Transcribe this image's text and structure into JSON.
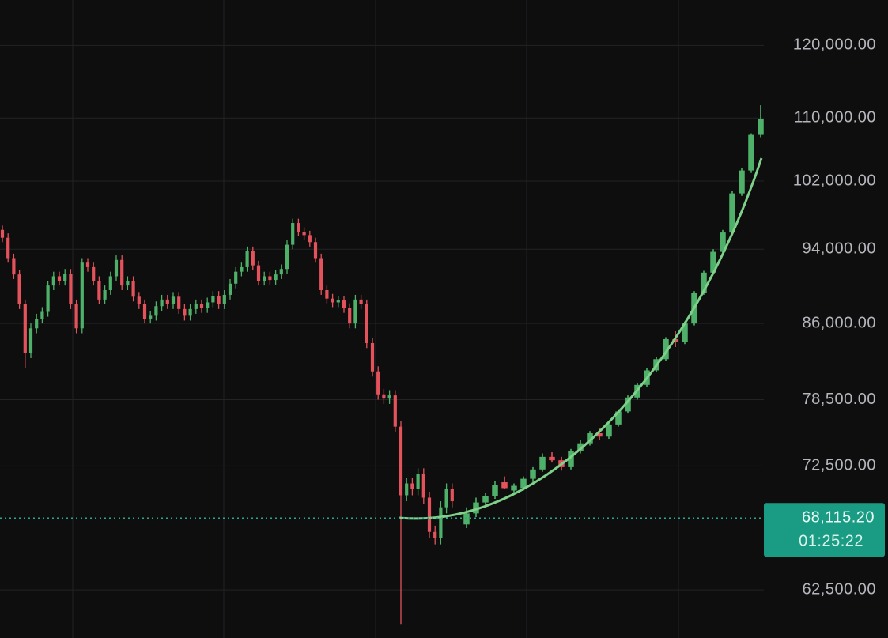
{
  "chart_data": {
    "type": "candlestick",
    "log_scale": true,
    "grid": true,
    "up_color": "#4fb06a",
    "down_color": "#e4535c",
    "ylim": [
      59000,
      126700
    ],
    "yticks": [
      {
        "value": 120000,
        "label": "120,000.00"
      },
      {
        "value": 110000,
        "label": "110,000.00"
      },
      {
        "value": 102000,
        "label": "102,000.00"
      },
      {
        "value": 94000,
        "label": "94,000.00"
      },
      {
        "value": 86000,
        "label": "86,000.00"
      },
      {
        "value": 78500,
        "label": "78,500.00"
      },
      {
        "value": 72500,
        "label": "72,500.00"
      },
      {
        "value": 62500,
        "label": "62,500.00"
      }
    ],
    "last_price": {
      "value": 68115.2,
      "label": "68,115.20"
    },
    "countdown": "01:25:22",
    "series": [
      {
        "open": [
          96200,
          95300,
          93000,
          91200,
          88000,
          83000,
          85500,
          86500,
          87200,
          90000,
          91000,
          90500,
          91300,
          88000,
          85500,
          92500,
          92000,
          90500,
          88500,
          89500,
          91000,
          92800,
          90000,
          90500,
          88800,
          88000,
          86500,
          86800,
          87800,
          88500,
          88000,
          88800,
          87500,
          86800,
          87500,
          88000,
          87600,
          88200,
          88900,
          88000,
          89000,
          90200,
          91500,
          92000,
          93800,
          92200,
          90500,
          91000,
          90600,
          91200,
          91800,
          94500,
          97000,
          96000,
          95600,
          94800,
          93000,
          89500,
          88600,
          88200,
          88400,
          87600,
          86000,
          88500,
          88000,
          84000,
          81200,
          79000,
          78600,
          78900,
          76000,
          70000,
          71000,
          70500,
          71800,
          69800,
          67000,
          66500,
          69000,
          70500
        ],
        "high": [
          96700,
          95800,
          93500,
          91700,
          88500,
          86000,
          87000,
          87700,
          90500,
          91500,
          91500,
          91800,
          91800,
          88500,
          93000,
          93000,
          92500,
          91000,
          90000,
          91500,
          93300,
          93300,
          91000,
          91000,
          89300,
          88500,
          87300,
          88300,
          89000,
          89000,
          89300,
          89300,
          88000,
          88000,
          88500,
          88500,
          88700,
          89400,
          89400,
          89500,
          90700,
          92000,
          92500,
          94300,
          94300,
          92700,
          91500,
          91500,
          91700,
          92300,
          95000,
          97500,
          97500,
          96500,
          96100,
          95300,
          93500,
          90000,
          89100,
          88900,
          88900,
          88100,
          89000,
          89000,
          88500,
          84500,
          81700,
          79500,
          79400,
          79400,
          76500,
          71500,
          71500,
          72300,
          72300,
          70300,
          67500,
          69500,
          71000,
          71000
        ],
        "low": [
          94800,
          92500,
          90700,
          87500,
          81500,
          82500,
          85000,
          86000,
          86700,
          89500,
          90000,
          90000,
          87500,
          85000,
          85000,
          91500,
          90000,
          88000,
          88000,
          89000,
          90500,
          89500,
          89500,
          88300,
          87500,
          86000,
          86000,
          86300,
          87300,
          87500,
          87500,
          87000,
          86300,
          86300,
          87000,
          87100,
          87100,
          87700,
          87500,
          87500,
          88500,
          89700,
          91000,
          91500,
          91700,
          90000,
          90000,
          90100,
          90100,
          90700,
          91300,
          94000,
          95500,
          95100,
          94300,
          92500,
          89000,
          88100,
          87700,
          87700,
          87100,
          85500,
          85500,
          87500,
          83500,
          80700,
          78500,
          78100,
          78100,
          75500,
          60000,
          69500,
          70000,
          70000,
          69300,
          66500,
          66000,
          66000,
          68500,
          69000
        ],
        "close": [
          95300,
          93000,
          91200,
          88000,
          83000,
          85500,
          86500,
          87200,
          90000,
          91000,
          90500,
          91300,
          88000,
          85500,
          92500,
          92000,
          90500,
          88500,
          89500,
          91000,
          92800,
          90000,
          90500,
          88800,
          88000,
          86500,
          86800,
          87800,
          88500,
          88000,
          88800,
          87500,
          86800,
          87500,
          88000,
          87600,
          88200,
          88900,
          88000,
          89000,
          90200,
          91500,
          92000,
          93800,
          92200,
          90500,
          91000,
          90600,
          91200,
          91800,
          94500,
          97000,
          96000,
          95600,
          94800,
          93000,
          89500,
          88600,
          88200,
          88400,
          87600,
          86000,
          88500,
          88000,
          84000,
          81200,
          79000,
          78600,
          78900,
          76000,
          70000,
          71000,
          70500,
          71800,
          69800,
          67000,
          66500,
          69000,
          70500,
          69500
        ]
      },
      {
        "open": [
          67600,
          68500,
          69400,
          69900,
          71100,
          70400,
          70600,
          71400,
          72200,
          73300,
          73000,
          72400,
          73800,
          74500,
          75400,
          75100,
          76200,
          77400,
          78700,
          79900,
          81300,
          82400,
          84400,
          84100,
          86000,
          89200,
          91400,
          93700,
          95900,
          100500,
          103300,
          107800
        ],
        "high": [
          69000,
          69800,
          70200,
          71200,
          71600,
          71000,
          71600,
          72400,
          73600,
          73700,
          73300,
          74000,
          74800,
          75600,
          75900,
          76400,
          77600,
          78900,
          80100,
          81500,
          82600,
          84600,
          85200,
          86200,
          89400,
          91600,
          94000,
          96200,
          100800,
          103600,
          108000,
          111700
        ],
        "low": [
          67300,
          68200,
          69100,
          69700,
          70500,
          70100,
          70400,
          71100,
          72000,
          72800,
          72100,
          72200,
          73600,
          74300,
          74800,
          74900,
          76000,
          77200,
          78500,
          79700,
          81100,
          82200,
          83600,
          83900,
          85800,
          89000,
          91200,
          93500,
          95700,
          100200,
          103000,
          107500
        ],
        "close": [
          68500,
          69400,
          69900,
          70900,
          70600,
          70800,
          71400,
          72200,
          73300,
          73000,
          72400,
          73800,
          74500,
          75400,
          75100,
          76200,
          77400,
          78700,
          79900,
          81300,
          82400,
          84400,
          84100,
          86000,
          89200,
          91400,
          93700,
          95900,
          100500,
          103300,
          107800,
          109900
        ]
      }
    ]
  }
}
